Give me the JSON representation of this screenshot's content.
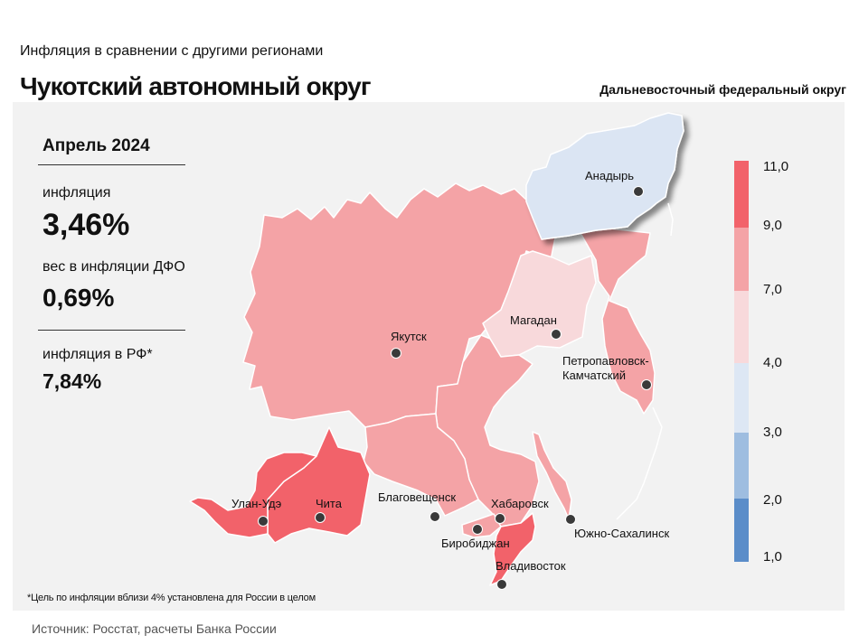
{
  "header": {
    "subtitle": "Инфляция  в сравнении  с другими регионами",
    "title": "Чукотский автономный округ",
    "district": "Дальневосточный федеральный округ"
  },
  "stats": {
    "period": "Апрель 2024",
    "inflation_label": "инфляция",
    "inflation_value": "3,46%",
    "weight_label": "вес в инфляции  ДФО",
    "weight_value": "0,69%",
    "rf_label": "инфляция  в РФ*",
    "rf_value": "7,84%"
  },
  "cities": [
    {
      "name": "Анадырь"
    },
    {
      "name": "Магадан"
    },
    {
      "name": "Якутск"
    },
    {
      "name": "Петропавловск-\nКамчатский"
    },
    {
      "name": "Улан-Удэ"
    },
    {
      "name": "Чита"
    },
    {
      "name": "Благовещенск"
    },
    {
      "name": "Хабаровск"
    },
    {
      "name": "Биробиджан"
    },
    {
      "name": "Южно-Сахалинск"
    },
    {
      "name": "Владивосток"
    }
  ],
  "legend": {
    "ticks": [
      "11,0",
      "9,0",
      "7,0",
      "4,0",
      "3,0",
      "2,0",
      "1,0"
    ],
    "colors": [
      "#f2626a",
      "#f4a3a6",
      "#f8d9db",
      "#dde7f4",
      "#9ebde0",
      "#5b8dc9"
    ]
  },
  "colors": {
    "chukotka": "#dbe5f3",
    "pink": "#f4a3a6",
    "light_pink": "#f8d9db",
    "red": "#f2626a"
  },
  "footnote": "*Цель по инфляции вблизи 4% установлена для России в целом",
  "source": "Источник: Росстат, расчеты  Банка России"
}
